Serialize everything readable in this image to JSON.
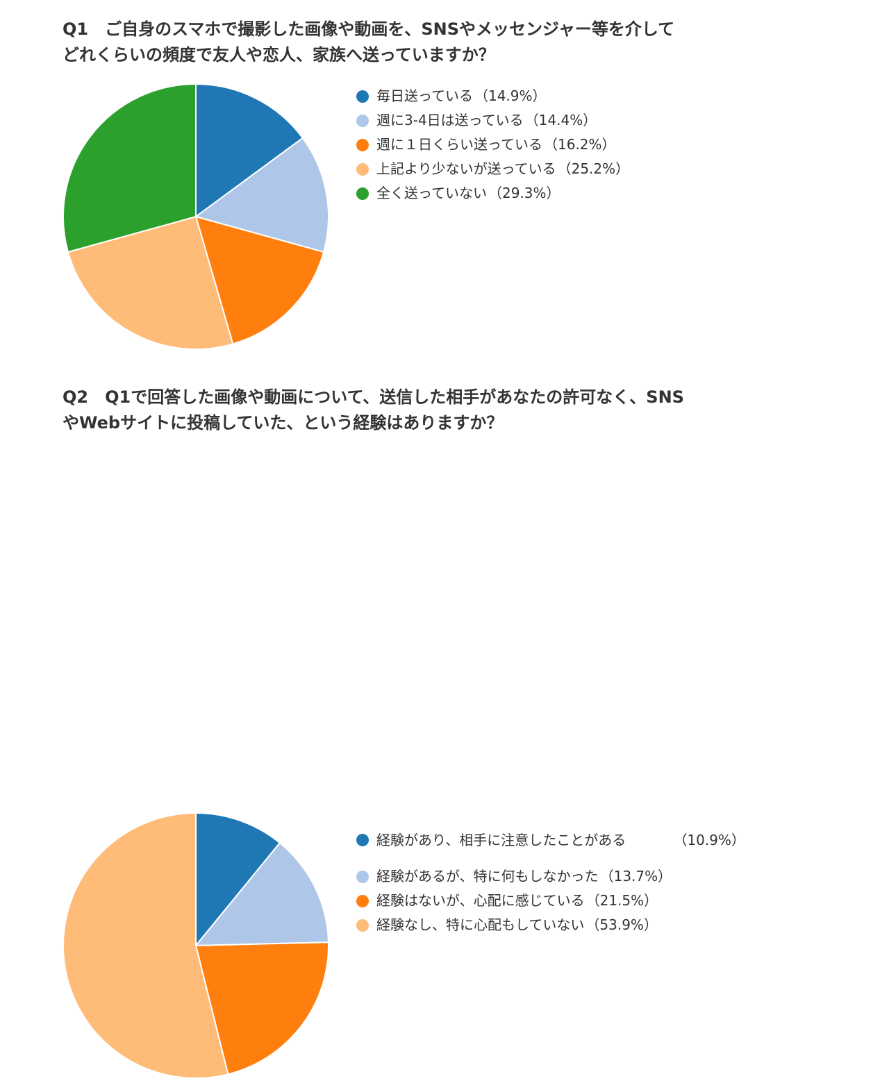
{
  "chart_data": [
    {
      "type": "pie",
      "title_lines": [
        "Q1　ご自身のスマホで撮影した画像や動画を、SNSやメッセンジャー等を介して",
        "どれくらいの頻度で友人や恋人、家族へ送っていますか？"
      ],
      "legend_position": "right",
      "slices": [
        {
          "label": "毎日送っている",
          "value": 14.9,
          "value_text": "（14.9%）",
          "color": "#1f77b4"
        },
        {
          "label": "週に3-4日は送っている",
          "value": 14.4,
          "value_text": "（14.4%）",
          "color": "#aec7e8"
        },
        {
          "label": "週に１日くらい送っている",
          "value": 16.2,
          "value_text": "（16.2%）",
          "color": "#ff7f0e"
        },
        {
          "label": "上記より少ないが送っている",
          "value": 25.2,
          "value_text": "（25.2%）",
          "color": "#ffbb78"
        },
        {
          "label": "全く送っていない",
          "value": 29.3,
          "value_text": "（29.3%）",
          "color": "#2ca02c"
        }
      ]
    },
    {
      "type": "pie",
      "title_lines": [
        "Q2　Q1で回答した画像や動画について、送信した相手があなたの許可なく、SNS",
        "やWebサイトに投稿していた、という経験はありますか？"
      ],
      "legend_position": "right",
      "slices": [
        {
          "label": "経験があり、相手に注意したことがある",
          "value": 10.9,
          "value_text": "（10.9%）",
          "color": "#1f77b4"
        },
        {
          "label": "経験があるが、特に何もしなかった",
          "value": 13.7,
          "value_text": "（13.7%）",
          "color": "#aec7e8"
        },
        {
          "label": "経験はないが、心配に感じている",
          "value": 21.5,
          "value_text": "（21.5%）",
          "color": "#ff7f0e"
        },
        {
          "label": "経験なし、特に心配もしていない",
          "value": 53.9,
          "value_text": "（53.9%）",
          "color": "#ffbb78"
        }
      ]
    }
  ]
}
